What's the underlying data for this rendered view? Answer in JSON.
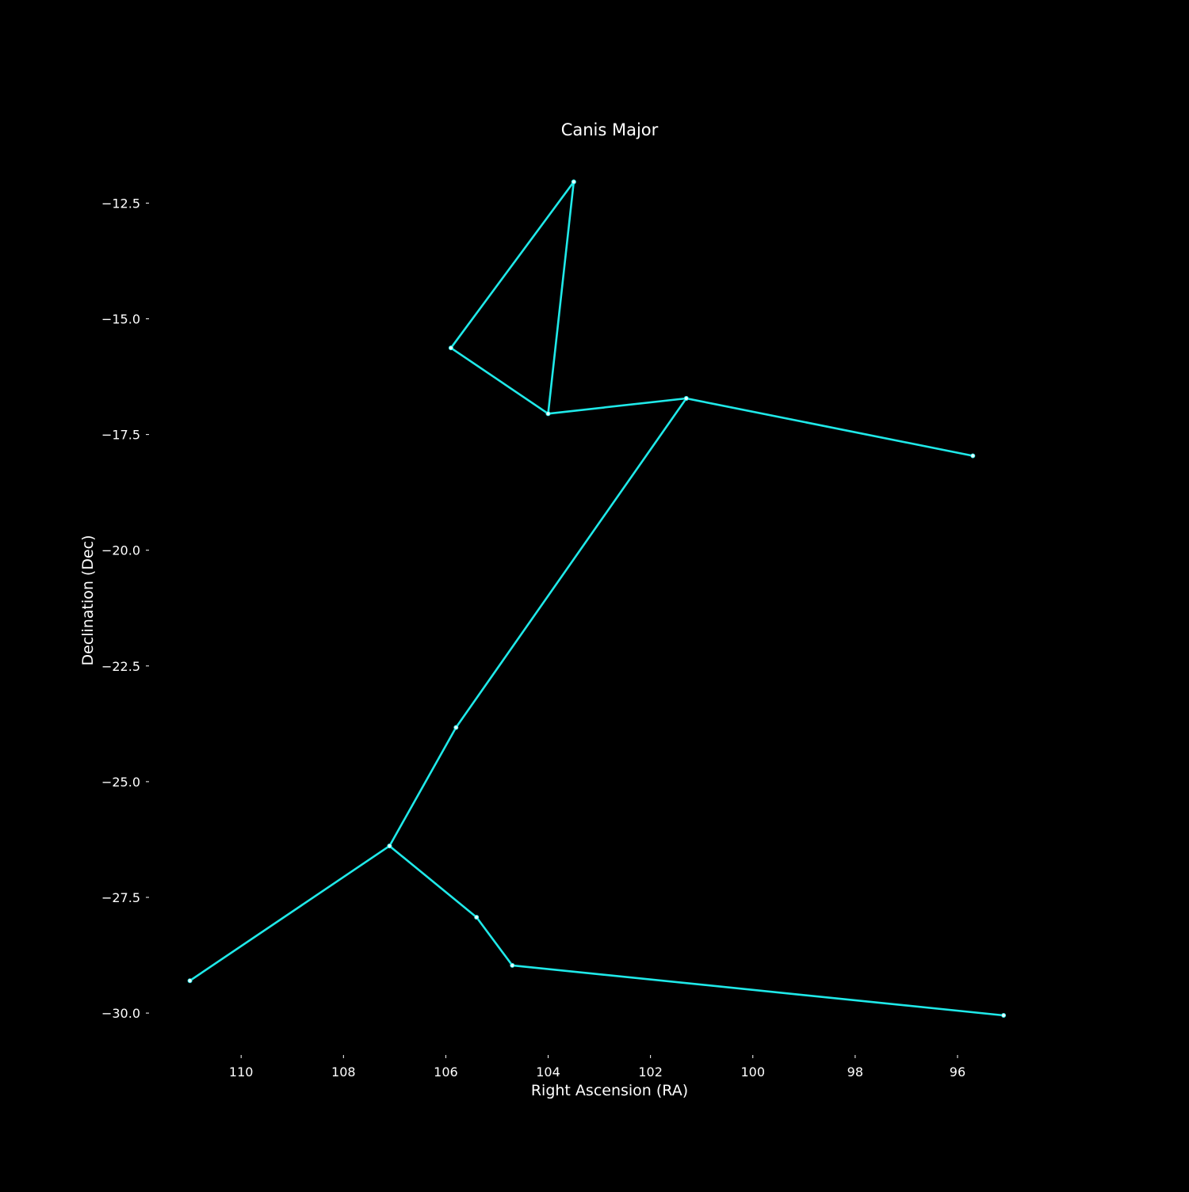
{
  "colors": {
    "background": "#000000",
    "line": "#1fe9e9",
    "point_fill": "#e6ffff",
    "text": "#ffffff"
  },
  "chart_data": {
    "type": "line",
    "title": "Canis Major",
    "xlabel": "Right Ascension (RA)",
    "ylabel": "Declination (Dec)",
    "x_inverted": true,
    "xlim": [
      111.8,
      93.8
    ],
    "ylim": [
      -30.7,
      -11.5
    ],
    "xticks": [
      110,
      108,
      106,
      104,
      102,
      100,
      98,
      96
    ],
    "xtick_labels": [
      "110",
      "108",
      "106",
      "104",
      "102",
      "100",
      "98",
      "96"
    ],
    "yticks": [
      -12.5,
      -15.0,
      -17.5,
      -20.0,
      -22.5,
      -25.0,
      -27.5,
      -30.0
    ],
    "ytick_labels": [
      "−12.5",
      "−15.0",
      "−17.5",
      "−20.0",
      "−22.5",
      "−25.0",
      "−27.5",
      "−30.0"
    ],
    "grid": false,
    "series": [
      {
        "x": [
          103.5,
          105.9,
          104.0,
          103.5
        ],
        "y": [
          -12.04,
          -15.63,
          -17.05,
          -12.04
        ]
      },
      {
        "x": [
          104.0,
          101.3,
          95.7
        ],
        "y": [
          -17.05,
          -16.72,
          -17.96
        ]
      },
      {
        "x": [
          101.3,
          105.8,
          107.1
        ],
        "y": [
          -16.72,
          -23.83,
          -26.39
        ]
      },
      {
        "x": [
          111.0,
          107.1,
          105.4,
          104.7,
          95.1
        ],
        "y": [
          -29.3,
          -26.39,
          -27.93,
          -28.97,
          -30.05
        ]
      }
    ]
  }
}
